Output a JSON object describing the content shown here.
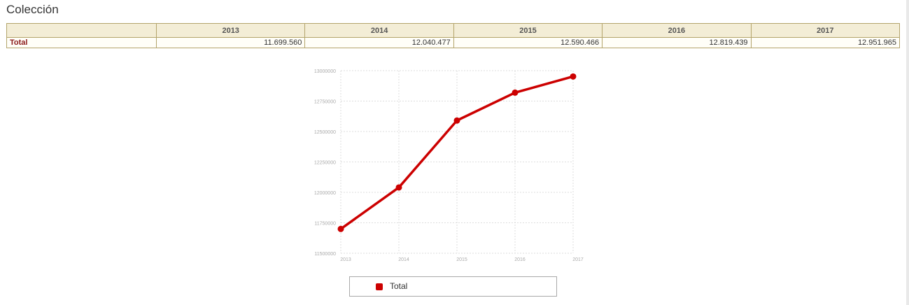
{
  "page": {
    "title": "Colección"
  },
  "table": {
    "row_label": "Total",
    "columns": [
      "2013",
      "2014",
      "2015",
      "2016",
      "2017"
    ],
    "values": [
      "11.699.560",
      "12.040.477",
      "12.590.466",
      "12.819.439",
      "12.951.965"
    ]
  },
  "chart_data": {
    "type": "line",
    "x": [
      "2013",
      "2014",
      "2015",
      "2016",
      "2017"
    ],
    "series": [
      {
        "name": "Total",
        "values": [
          11699560,
          12040477,
          12590466,
          12819439,
          12951965
        ]
      }
    ],
    "ylim": [
      11500000,
      13000000
    ],
    "yticks": [
      "13000000",
      "12750000",
      "12500000",
      "12250000",
      "12000000",
      "11750000",
      "11500000"
    ],
    "ytick_values": [
      13000000,
      12750000,
      12500000,
      12250000,
      12000000,
      11750000,
      11500000
    ],
    "grid": true,
    "legend": "bottom",
    "colors": {
      "series": "#cc0000",
      "grid": "#dddddd",
      "ticks": "#aaaaaa"
    }
  }
}
